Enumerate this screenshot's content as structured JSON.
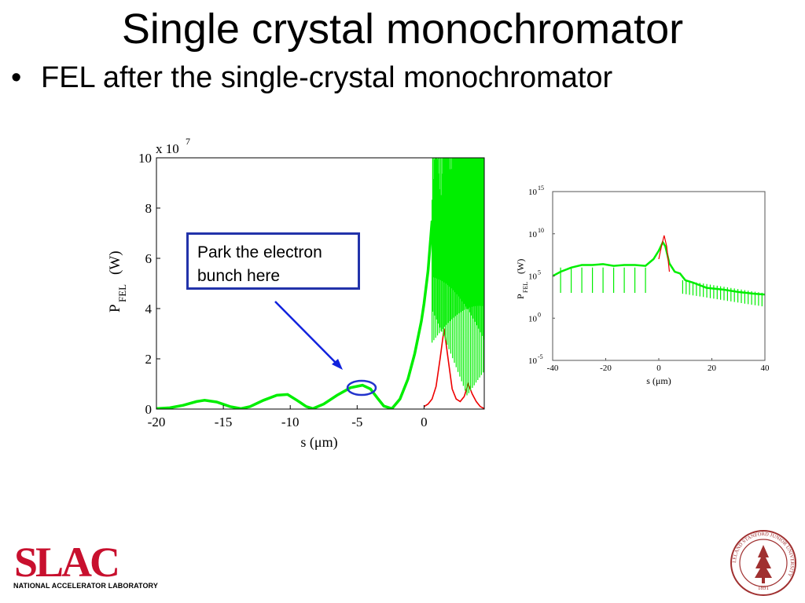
{
  "slide": {
    "title": "Single crystal monochromator",
    "bullet": "FEL after the single-crystal monochromator",
    "callout": [
      "Park the electron",
      "bunch here"
    ]
  },
  "logo": {
    "letters": "SLAC",
    "subtitle": "NATIONAL ACCELERATOR LABORATORY",
    "color": "#c8102e"
  },
  "seal": {
    "text": "LELAND STANFORD JUNIOR UNIVERSITY",
    "year": "1891",
    "color": "#a03030"
  },
  "chart_data": [
    {
      "type": "line",
      "ylabel_main": "P",
      "ylabel_sub": "FEL",
      "ylabel_unit": "(W)",
      "xlabel": "s (μm)",
      "exponent_base": "x 10",
      "exponent_power": "7",
      "xlim": [
        -20,
        4.5
      ],
      "ylim": [
        0,
        10
      ],
      "x_ticks": [
        -20,
        -15,
        -10,
        -5,
        0
      ],
      "x_tick_labels": [
        "-20",
        "-15",
        "-10",
        "-5",
        "0"
      ],
      "y_ticks": [
        0,
        2,
        4,
        6,
        8,
        10
      ],
      "y_tick_labels": [
        "0",
        "2",
        "4",
        "6",
        "8",
        "10"
      ],
      "series": [
        {
          "color": "#00ee00",
          "x": [
            -20,
            -19,
            -18,
            -17,
            -16.4,
            -15.5,
            -14.5,
            -13.7,
            -13,
            -12,
            -11,
            -10.2,
            -9.5,
            -8.8,
            -8.3,
            -7.5,
            -6.5,
            -5.5,
            -4.6,
            -4,
            -3.5,
            -3,
            -2.4,
            -1.8,
            -1.2,
            -0.7,
            -0.2,
            0,
            0.3,
            0.6
          ],
          "y": [
            0.02,
            0.05,
            0.15,
            0.3,
            0.35,
            0.28,
            0.1,
            0.02,
            0.1,
            0.35,
            0.55,
            0.58,
            0.35,
            0.1,
            0.02,
            0.2,
            0.55,
            0.85,
            0.95,
            0.8,
            0.45,
            0.12,
            0.02,
            0.4,
            1.2,
            2.2,
            3.5,
            4.2,
            5.5,
            7.5
          ]
        },
        {
          "color": "#ee0000",
          "x": [
            0,
            0.3,
            0.6,
            0.9,
            1.2,
            1.5,
            1.8,
            2.1,
            2.4,
            2.7,
            3,
            3.3,
            3.6,
            3.9,
            4.2,
            4.5
          ],
          "y": [
            0.1,
            0.2,
            0.4,
            0.9,
            2.0,
            3.2,
            2.0,
            0.8,
            0.4,
            0.3,
            0.5,
            1.0,
            0.6,
            0.3,
            0.1,
            0.02
          ]
        }
      ]
    },
    {
      "type": "line",
      "scale": "log",
      "ylabel_main": "P",
      "ylabel_sub": "FEL",
      "ylabel_unit": "(W)",
      "xlabel": "s (μm)",
      "xlim": [
        -40,
        40
      ],
      "ylim_exp": [
        -5,
        15
      ],
      "x_ticks": [
        -40,
        -20,
        0,
        20,
        40
      ],
      "x_tick_labels": [
        "-40",
        "-20",
        "0",
        "20",
        "40"
      ],
      "y_ticks_exp": [
        -5,
        0,
        5,
        10,
        15
      ],
      "y_tick_base": "10",
      "y_tick_powers": [
        "-5",
        "0",
        "5",
        "10",
        "15"
      ],
      "series": [
        {
          "color": "#00ee00",
          "x": [
            -40,
            -37,
            -33,
            -29,
            -25,
            -21,
            -17,
            -13,
            -9,
            -5,
            -2,
            0,
            1.5,
            2.5,
            4,
            6,
            8,
            10,
            13,
            18,
            24,
            30,
            36,
            40
          ],
          "y_exp": [
            5,
            5.5,
            6,
            6.3,
            6.3,
            6.4,
            6.2,
            6.3,
            6.3,
            6.2,
            7,
            8,
            9,
            8.5,
            6.5,
            5.5,
            5.3,
            4.5,
            4.2,
            3.6,
            3.4,
            3.1,
            2.9,
            2.8
          ]
        },
        {
          "color": "#ee0000",
          "x": [
            0,
            1,
            2,
            3,
            4
          ],
          "y_exp": [
            7,
            8.5,
            9.8,
            8.5,
            5.5
          ]
        }
      ]
    }
  ]
}
